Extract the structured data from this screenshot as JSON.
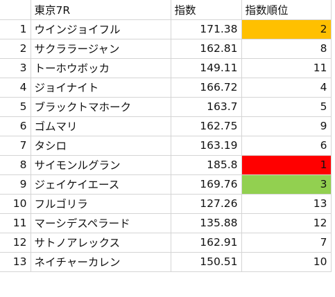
{
  "sheet": {
    "header": {
      "rownum": "",
      "col_name": "東京7R",
      "col_index": "指数",
      "col_rank": "指数順位"
    },
    "rows": [
      {
        "num": "1",
        "name": "ウインジョイフル",
        "index": "171.38",
        "rank": "2",
        "rank_color": "orange"
      },
      {
        "num": "2",
        "name": "サクララージャン",
        "index": "162.81",
        "rank": "8",
        "rank_color": ""
      },
      {
        "num": "3",
        "name": "トーホウボッカ",
        "index": "149.11",
        "rank": "11",
        "rank_color": ""
      },
      {
        "num": "4",
        "name": "ジョイナイト",
        "index": "166.72",
        "rank": "4",
        "rank_color": ""
      },
      {
        "num": "5",
        "name": "ブラックトマホーク",
        "index": "163.7",
        "rank": "5",
        "rank_color": ""
      },
      {
        "num": "6",
        "name": "ゴムマリ",
        "index": "162.75",
        "rank": "9",
        "rank_color": ""
      },
      {
        "num": "7",
        "name": "タシロ",
        "index": "163.19",
        "rank": "6",
        "rank_color": ""
      },
      {
        "num": "8",
        "name": "サイモンルグラン",
        "index": "185.8",
        "rank": "1",
        "rank_color": "red"
      },
      {
        "num": "9",
        "name": "ジェイケイエース",
        "index": "169.76",
        "rank": "3",
        "rank_color": "green"
      },
      {
        "num": "10",
        "name": "フルゴリラ",
        "index": "127.26",
        "rank": "13",
        "rank_color": ""
      },
      {
        "num": "11",
        "name": "マーシデスペラード",
        "index": "135.88",
        "rank": "12",
        "rank_color": ""
      },
      {
        "num": "12",
        "name": "サトノアレックス",
        "index": "162.91",
        "rank": "7",
        "rank_color": ""
      },
      {
        "num": "13",
        "name": "ネイチャーカレン",
        "index": "150.51",
        "rank": "10",
        "rank_color": ""
      }
    ]
  },
  "colors": {
    "orange": "#ffc000",
    "red": "#ff0000",
    "green": "#92d050",
    "gridline": "#d4d4d4"
  }
}
